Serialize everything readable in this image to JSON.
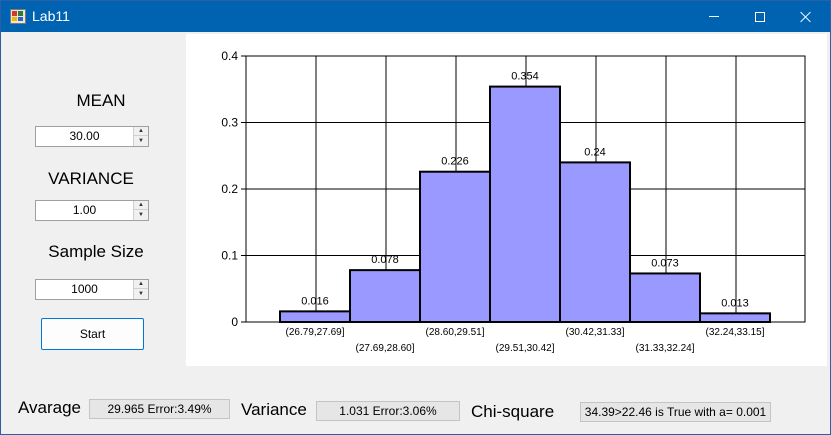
{
  "window": {
    "title": "Lab11"
  },
  "inputs": {
    "mean": {
      "label": "MEAN",
      "value": "30.00"
    },
    "variance": {
      "label": "VARIANCE",
      "value": "1.00"
    },
    "sample_size": {
      "label": "Sample Size",
      "value": "1000"
    }
  },
  "start_label": "Start",
  "results": {
    "average_label": "Avarage",
    "average_value": "29.965 Error:3.49%",
    "variance_label": "Variance",
    "variance_value": "1.031 Error:3.06%",
    "chi_label": "Chi-square",
    "chi_value": "34.39>22.46 is True with a= 0.001"
  },
  "chart_data": {
    "type": "bar",
    "categories": [
      "(26.79,27.69]",
      "(27.69,28.60]",
      "(28.60,29.51]",
      "(29.51,30.42]",
      "(30.42,31.33]",
      "(31.33,32.24]",
      "(32.24,33.15]"
    ],
    "values": [
      0.016,
      0.078,
      0.226,
      0.354,
      0.24,
      0.073,
      0.013
    ],
    "value_labels": [
      "0.016",
      "0.078",
      "0.226",
      "0.354",
      "0.24",
      "0.073",
      "0.013"
    ],
    "yticks": [
      "0",
      "0.1",
      "0.2",
      "0.3",
      "0.4"
    ],
    "ylim": [
      0,
      0.4
    ],
    "grid": true,
    "colors": {
      "bar_fill": "#9999ff",
      "bar_stroke": "#000000"
    }
  }
}
